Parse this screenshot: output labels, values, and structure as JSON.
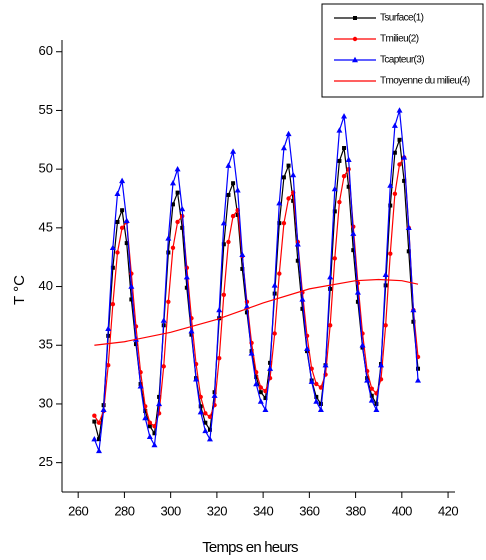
{
  "chart_data": {
    "type": "line",
    "x_label": "Temps en heurs",
    "y_label": "T °C",
    "x": [
      267,
      269,
      271,
      273,
      275,
      277,
      279,
      281,
      283,
      285,
      287,
      289,
      291,
      293,
      295,
      297,
      299,
      301,
      303,
      305,
      307,
      309,
      311,
      313,
      315,
      317,
      319,
      321,
      323,
      325,
      327,
      329,
      331,
      333,
      335,
      337,
      339,
      341,
      343,
      345,
      347,
      349,
      351,
      353,
      355,
      357,
      359,
      361,
      363,
      365,
      367,
      369,
      371,
      373,
      375,
      377,
      379,
      381,
      383,
      385,
      387,
      389,
      391,
      393,
      395,
      397,
      399,
      401,
      403,
      405,
      407
    ],
    "series": [
      {
        "name": "Tsurface(1)",
        "color": "#000000",
        "marker": "square",
        "values": [
          28.5,
          27,
          29.9,
          35.8,
          41.6,
          45.5,
          46.5,
          43.7,
          38.9,
          35.1,
          31.7,
          29.4,
          28.1,
          27.5,
          30.6,
          36.7,
          42.9,
          47,
          48,
          45,
          39.9,
          35.9,
          32.2,
          29.8,
          28.4,
          27.8,
          31,
          37.3,
          43.6,
          47.8,
          48.8,
          46.1,
          41.5,
          37.8,
          34.5,
          32.3,
          31,
          30.5,
          33.5,
          39.4,
          45.4,
          49.3,
          50.3,
          47.3,
          42.2,
          38.1,
          34.5,
          32,
          30.6,
          30,
          33.3,
          39.8,
          46.4,
          50.7,
          51.8,
          48.5,
          43.1,
          38.7,
          34.8,
          32.2,
          30.7,
          30,
          33.4,
          40.1,
          46.9,
          51.4,
          52.5,
          49,
          43,
          37,
          33
        ]
      },
      {
        "name": "Tmilieu(2)",
        "color": "#ff0000",
        "marker": "circle",
        "values": [
          29,
          28.4,
          29.4,
          33.3,
          38.5,
          42.9,
          45,
          45.5,
          41.1,
          36.6,
          32.7,
          29.8,
          28.4,
          28.1,
          29.2,
          33.2,
          38.7,
          43.3,
          45.5,
          46,
          41.6,
          37.3,
          33.4,
          30.6,
          29.2,
          28.9,
          29.9,
          33.9,
          39.3,
          43.8,
          46,
          46.5,
          42.6,
          38.7,
          35.2,
          32.7,
          31.4,
          31.1,
          32.2,
          36,
          41.1,
          45.4,
          47.5,
          48,
          43.8,
          39.5,
          35.8,
          33,
          31.7,
          31.4,
          32.5,
          36.7,
          42.4,
          47.2,
          49.4,
          50,
          45.1,
          40.3,
          36,
          32.8,
          31.3,
          30.9,
          32.1,
          36.7,
          42.8,
          47.9,
          50.4,
          51,
          45,
          38,
          34
        ]
      },
      {
        "name": "Tcapteur(3)",
        "color": "#0000ff",
        "marker": "triangle",
        "values": [
          27,
          26,
          29.5,
          36.4,
          43.3,
          47.9,
          49,
          45.6,
          40,
          35.5,
          31.5,
          28.8,
          27.2,
          26.5,
          30,
          37.1,
          44.1,
          48.8,
          50,
          46.6,
          40.8,
          36.2,
          32.1,
          29.3,
          27.7,
          27,
          30.7,
          38,
          45.4,
          50.3,
          51.5,
          48.2,
          42.7,
          38.3,
          34.3,
          31.7,
          30.2,
          29.5,
          33,
          40.1,
          47.1,
          51.8,
          53,
          49.5,
          43.6,
          38.9,
          34.7,
          31.9,
          30.2,
          29.5,
          33.3,
          40.8,
          48.3,
          53.3,
          54.5,
          50.8,
          44.5,
          39.5,
          35,
          32,
          30.3,
          29.5,
          33.3,
          41,
          48.6,
          53.7,
          55,
          51,
          45,
          38,
          32
        ]
      },
      {
        "name": "Tmoyenne du milieu(4)",
        "color": "#ff0000",
        "marker": "none",
        "x": [
          267,
          280,
          300,
          320,
          340,
          360,
          380,
          390,
          400,
          407
        ],
        "values": [
          35,
          35.3,
          36.1,
          37.2,
          38.6,
          39.8,
          40.5,
          40.6,
          40.5,
          40.2
        ]
      }
    ],
    "xlim": [
      253,
      423
    ],
    "xticks": [
      260,
      280,
      300,
      320,
      340,
      360,
      380,
      400,
      420
    ],
    "ylim": [
      22.5,
      61
    ],
    "yticks": [
      25,
      30,
      35,
      40,
      45,
      50,
      55,
      60
    ],
    "legend": "upper right"
  }
}
